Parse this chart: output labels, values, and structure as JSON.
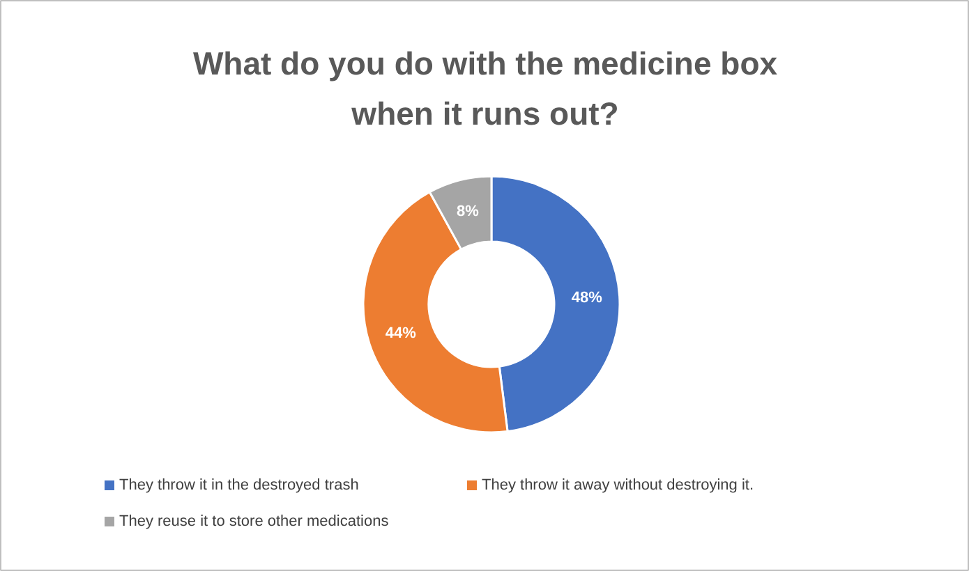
{
  "chart_data": {
    "type": "donut",
    "title": "What do you do with the medicine box when it runs out?",
    "categories": [
      "They throw it in the destroyed trash",
      "They throw it away without destroying it.",
      "They reuse it to store other medications"
    ],
    "values": [
      48,
      44,
      8
    ],
    "colors": [
      "#4472c4",
      "#ed7d31",
      "#a5a5a5"
    ],
    "value_labels": [
      "48%",
      "44%",
      "8%"
    ],
    "legend": "bottom"
  }
}
